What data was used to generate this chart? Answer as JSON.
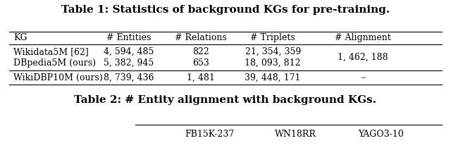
{
  "title1": "Table 1: Statistics of background KGs for pre-training.",
  "title2": "Table 2: # Entity alignment with background KGs.",
  "col_headers": [
    "KG",
    "# Entities",
    "# Relations",
    "# Triplets",
    "# Alignment"
  ],
  "rows": [
    [
      "Wikidata5M [62]",
      "4, 594, 485",
      "822",
      "21, 354, 359",
      ""
    ],
    [
      "DBpedia5M (ours)",
      "5, 382, 945",
      "653",
      "18, 093, 812",
      ""
    ],
    [
      "WikiDBP10M (ours)",
      "8, 739, 436",
      "1, 481",
      "39, 448, 171",
      "–"
    ]
  ],
  "alignment_val": "1, 462, 188",
  "table2_cols": [
    "FB15K-237",
    "WN18RR",
    "YAGO3-10"
  ],
  "bg_color": "#ffffff",
  "text_color": "#000000",
  "title_fontsize": 11,
  "body_fontsize": 9
}
